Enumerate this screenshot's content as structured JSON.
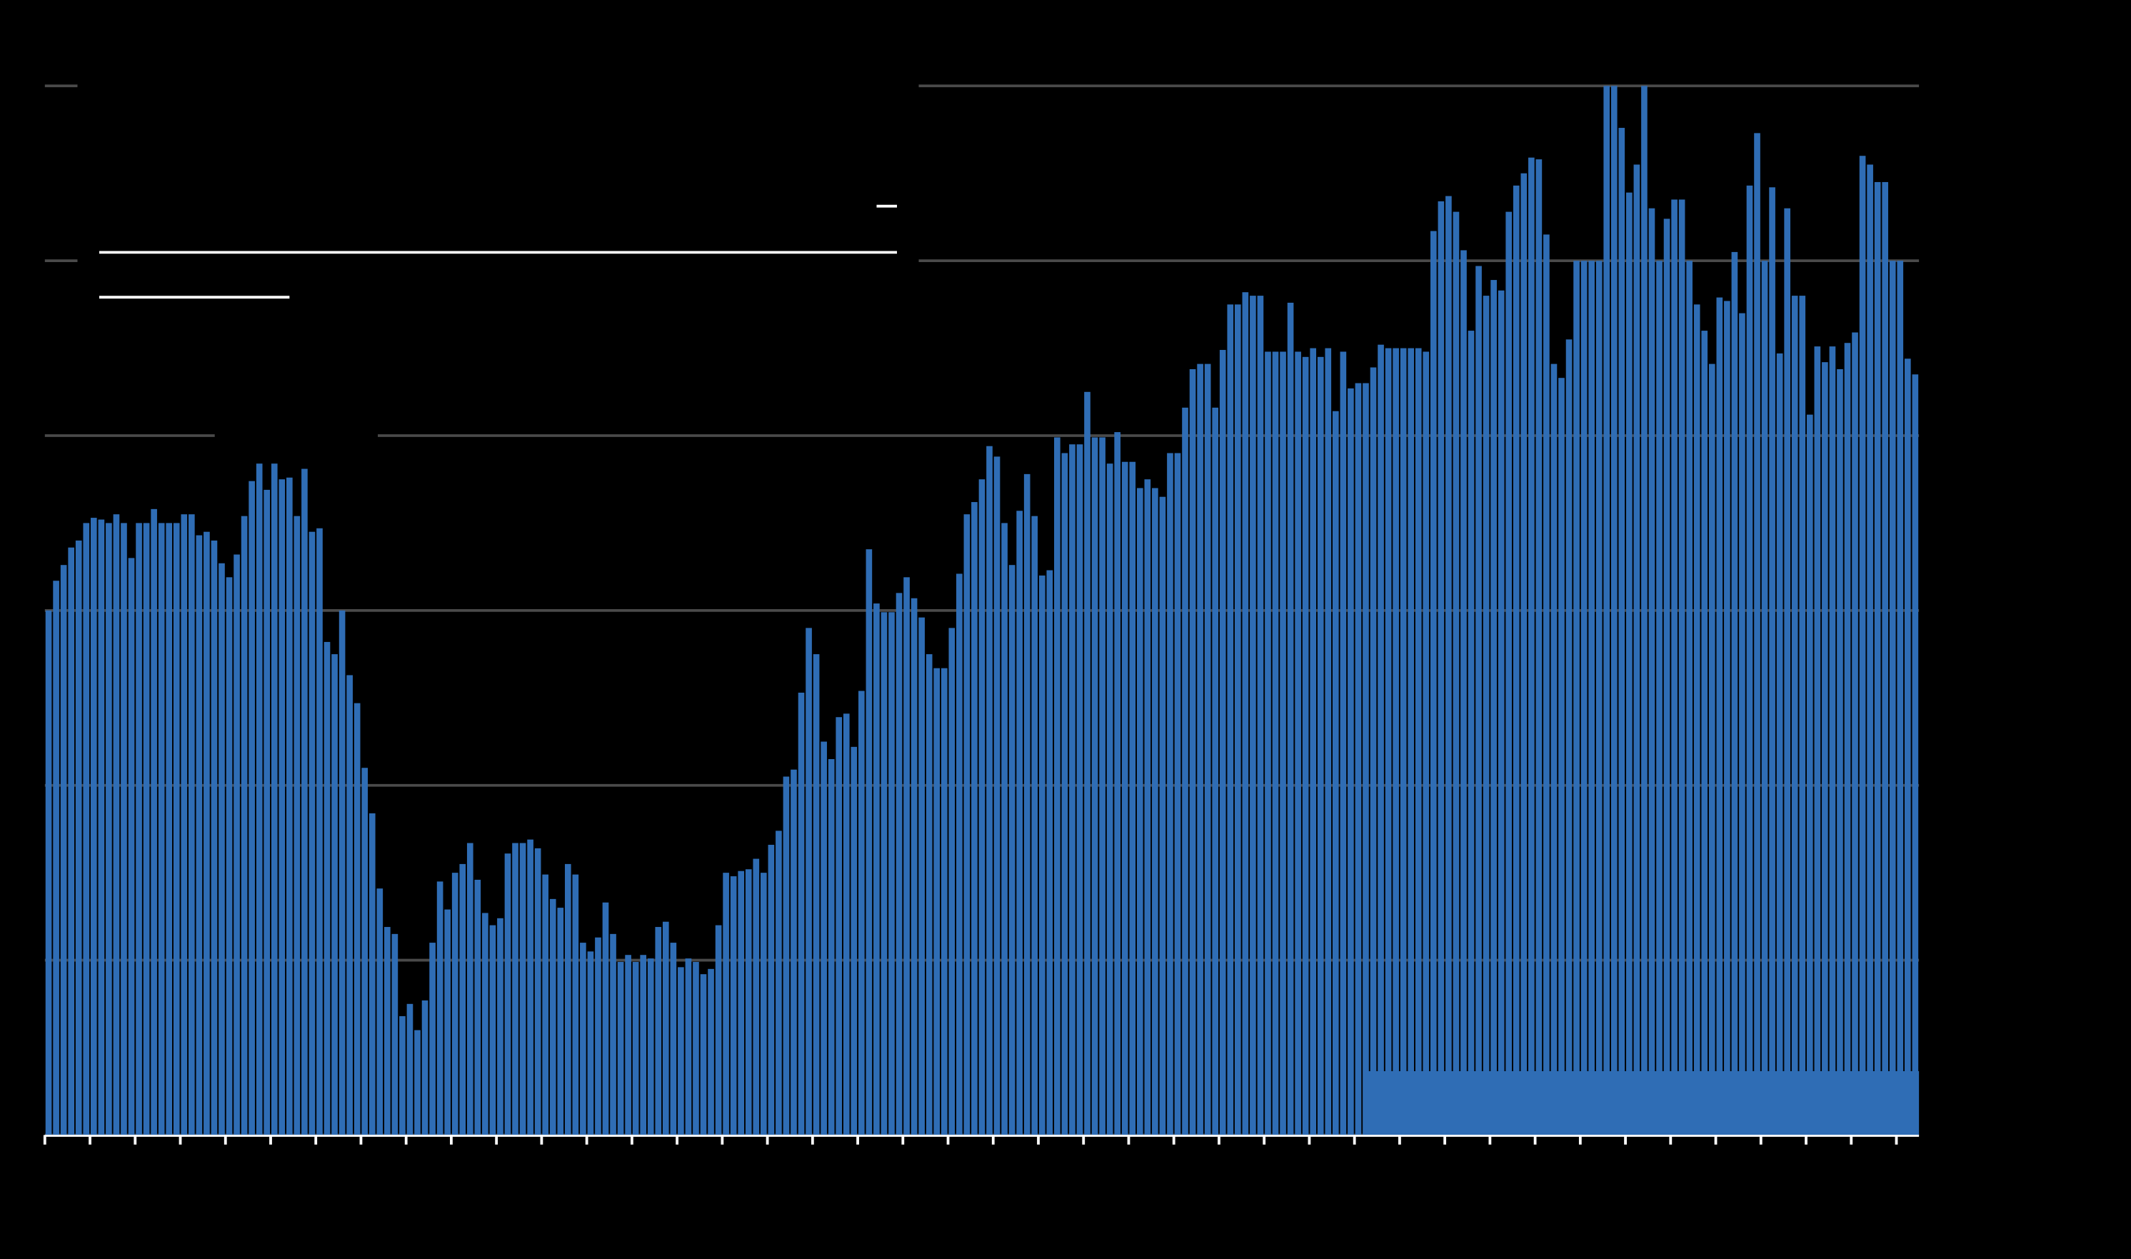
{
  "chart_data": {
    "type": "bar",
    "color": "#2f6db5",
    "grid": true,
    "ylim": [
      0,
      60
    ],
    "yticks": [
      0,
      10,
      20,
      30,
      40,
      50,
      60
    ],
    "values": [
      30.0,
      31.7,
      32.6,
      33.6,
      34.0,
      35.0,
      35.3,
      35.2,
      35.0,
      35.5,
      35.0,
      33.0,
      35.0,
      35.0,
      35.8,
      35.0,
      35.0,
      35.0,
      35.5,
      35.5,
      34.3,
      34.5,
      34.0,
      32.7,
      31.9,
      33.2,
      35.4,
      37.4,
      38.4,
      36.9,
      38.4,
      37.5,
      37.6,
      35.4,
      38.1,
      34.5,
      34.7,
      28.2,
      27.5,
      30.0,
      26.3,
      24.7,
      21.0,
      18.4,
      14.1,
      11.9,
      11.5,
      6.8,
      7.5,
      6.0,
      7.7,
      11.0,
      14.5,
      12.9,
      15.0,
      15.5,
      16.7,
      14.6,
      12.7,
      12.0,
      12.4,
      16.1,
      16.7,
      16.7,
      16.9,
      16.4,
      14.9,
      13.5,
      13.0,
      15.5,
      14.9,
      11.0,
      10.5,
      11.3,
      13.3,
      11.5,
      9.9,
      10.3,
      9.9,
      10.3,
      10.1,
      11.9,
      12.2,
      11.0,
      9.6,
      10.1,
      9.9,
      9.2,
      9.5,
      12.0,
      15.0,
      14.8,
      15.1,
      15.2,
      15.8,
      15.0,
      16.6,
      17.4,
      20.5,
      20.9,
      25.3,
      29.0,
      27.5,
      22.5,
      21.5,
      23.9,
      24.1,
      22.2,
      25.4,
      33.5,
      30.4,
      29.9,
      29.9,
      31.0,
      31.9,
      30.7,
      29.6,
      27.5,
      26.7,
      26.7,
      29.0,
      32.1,
      35.5,
      36.2,
      37.5,
      39.4,
      38.8,
      35.0,
      32.6,
      35.7,
      37.8,
      35.4,
      32.0,
      32.3,
      39.9,
      39.0,
      39.5,
      39.5,
      42.5,
      39.9,
      39.9,
      38.4,
      40.2,
      38.5,
      38.5,
      37.0,
      37.5,
      37.0,
      36.5,
      39.0,
      39.0,
      41.6,
      43.8,
      44.1,
      44.1,
      41.6,
      44.9,
      47.5,
      47.5,
      48.2,
      48.0,
      48.0,
      44.8,
      44.8,
      44.8,
      47.6,
      44.8,
      44.5,
      45.0,
      44.5,
      45.0,
      41.4,
      44.8,
      42.7,
      43.0,
      43.0,
      43.9,
      45.2,
      45.0,
      45.0,
      45.0,
      45.0,
      45.0,
      44.8,
      51.7,
      53.4,
      53.7,
      52.8,
      50.6,
      46.0,
      49.7,
      48.0,
      48.9,
      48.3,
      52.8,
      54.3,
      55.0,
      55.9,
      55.8,
      51.5,
      44.1,
      43.3,
      45.5,
      50.0,
      50.0,
      50.0,
      50.0,
      60.0,
      60.0,
      57.6,
      53.9,
      55.5,
      60.0,
      53.0,
      50.0,
      52.4,
      53.5,
      53.5,
      50.0,
      47.5,
      46.0,
      44.1,
      47.9,
      47.7,
      50.5,
      47.0,
      54.3,
      57.3,
      50.0,
      54.2,
      44.7,
      53.0,
      48.0,
      48.0,
      41.2,
      45.1,
      44.2,
      45.1,
      43.8,
      45.3,
      45.9,
      56.0,
      55.5,
      54.5,
      54.5,
      50.0,
      50.0,
      44.4,
      43.5
    ]
  }
}
